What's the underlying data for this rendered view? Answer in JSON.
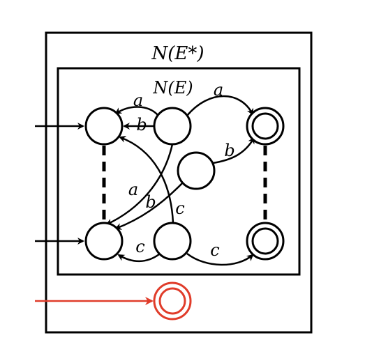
{
  "outer_box": {
    "title": "N(E*)"
  },
  "inner_box": {
    "title": "N(E)"
  },
  "edge_labels": {
    "top_a": "a",
    "left_a": "a",
    "left_b": "b",
    "mid_b_right": "b",
    "cross_a": "a",
    "cross_b": "b",
    "cross_c": "c",
    "bottom_c_left": "c",
    "bottom_c_right": "c"
  },
  "colors": {
    "stroke": "#000000",
    "new_state": "#e03c2a",
    "background": "#ffffff"
  }
}
